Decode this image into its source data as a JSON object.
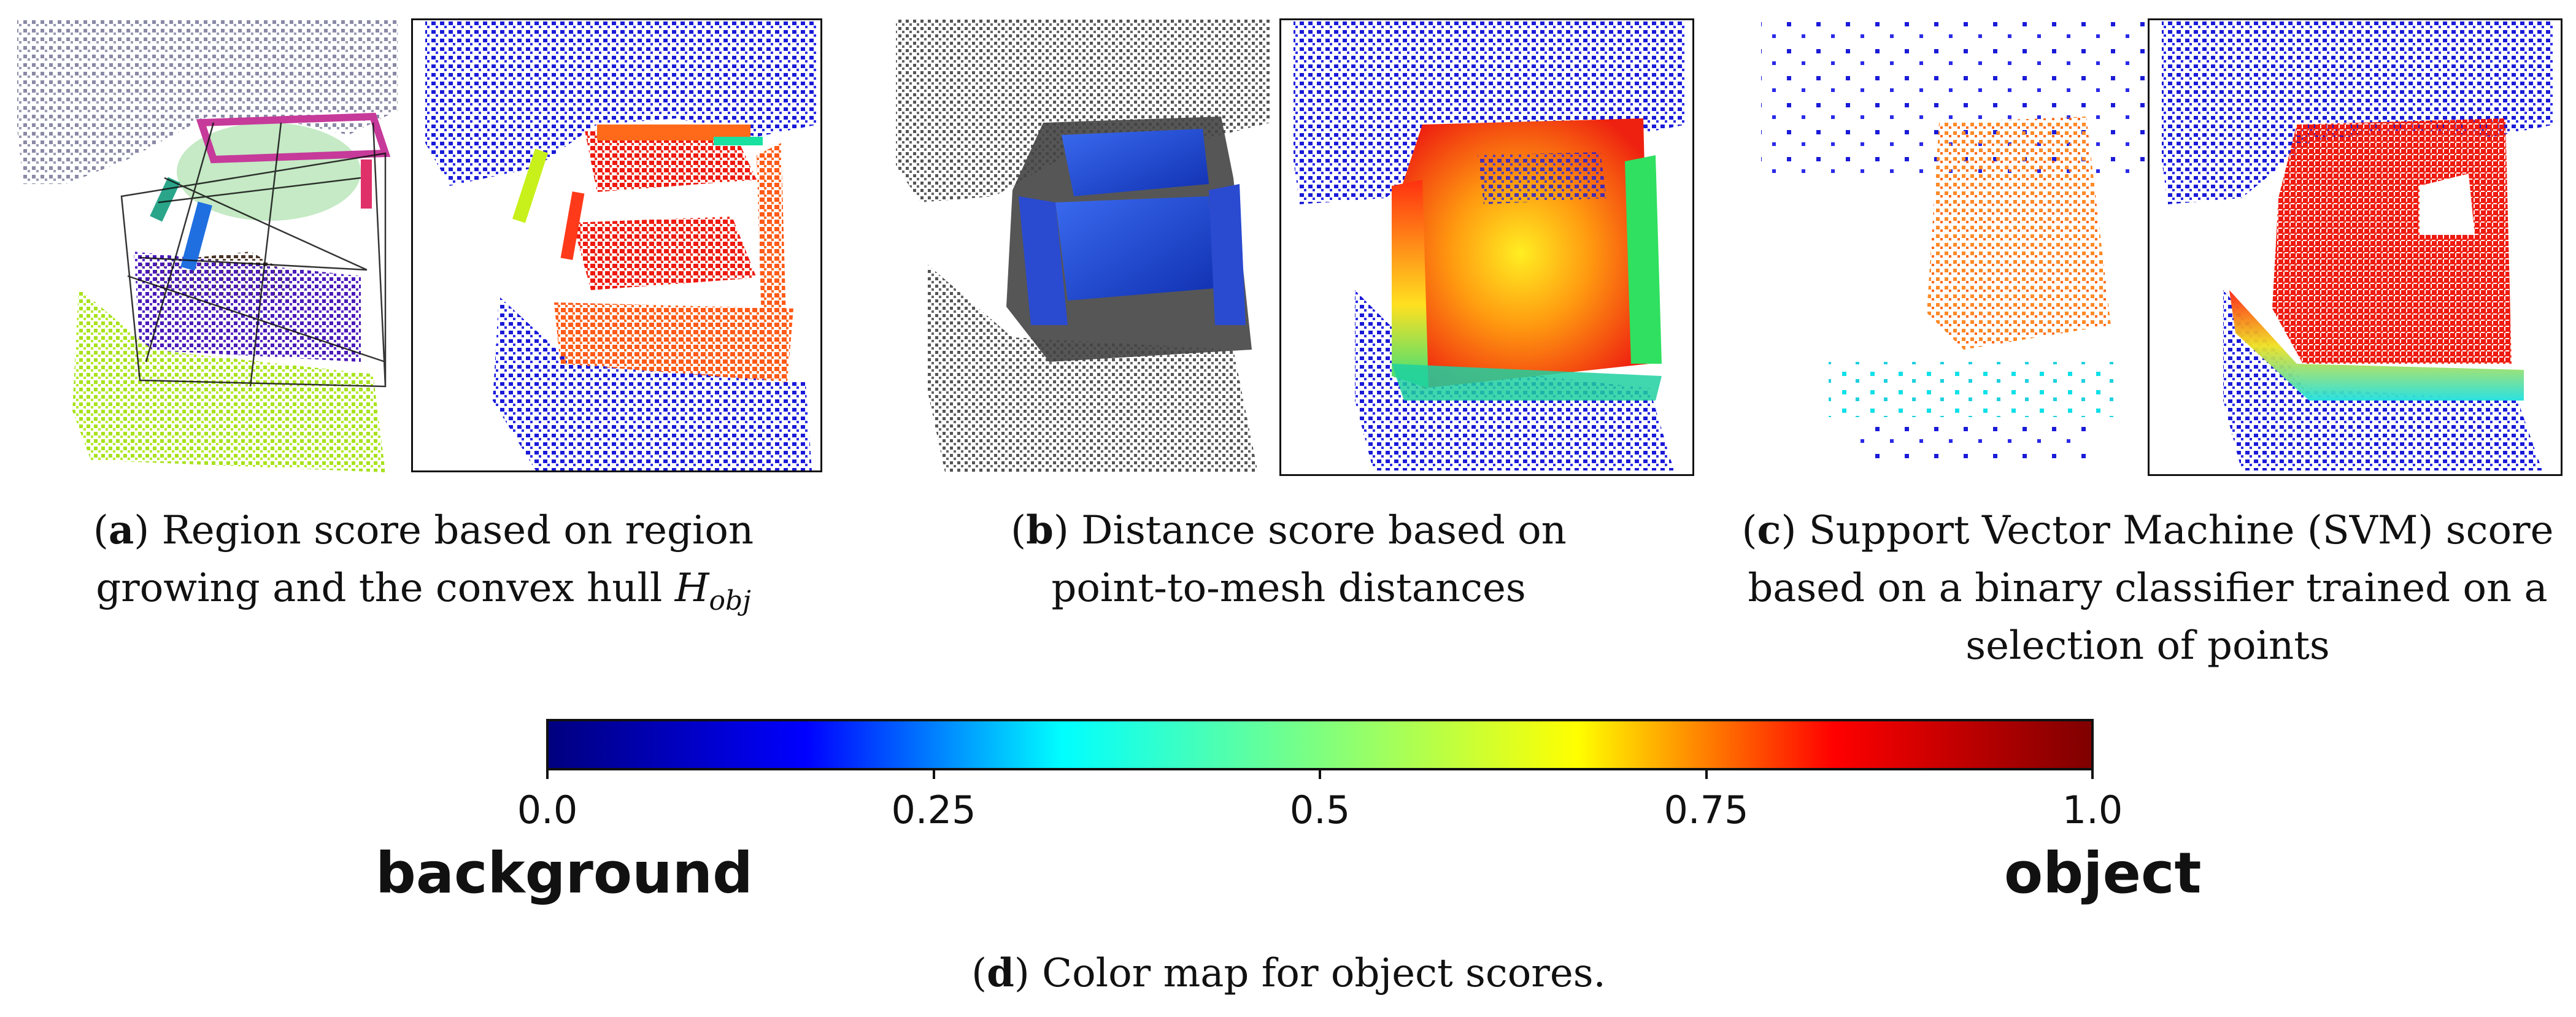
{
  "subfigures": [
    {
      "letter": "a",
      "caption_lines": [
        "Region score based on region",
        "growing and the convex hull "
      ],
      "hull_symbol": "H",
      "hull_subscript": "obj"
    },
    {
      "letter": "b",
      "caption_lines": [
        "Distance score based on",
        "point-to-mesh distances"
      ]
    },
    {
      "letter": "c",
      "caption_lines": [
        "Support Vector Machine (SVM) score",
        "based on a binary classifier trained on a",
        "selection of points"
      ]
    },
    {
      "letter": "d",
      "caption_lines": [
        "Color map for object scores."
      ]
    }
  ],
  "colormap": {
    "name": "jet",
    "stops": [
      "#00007f",
      "#0000ff",
      "#00ffff",
      "#7fff7f",
      "#ffff00",
      "#ff0000",
      "#7f0000"
    ],
    "ticks": [
      {
        "value": 0.0,
        "label": "0.0"
      },
      {
        "value": 0.25,
        "label": "0.25"
      },
      {
        "value": 0.5,
        "label": "0.5"
      },
      {
        "value": 0.75,
        "label": "0.75"
      },
      {
        "value": 1.0,
        "label": "1.0"
      }
    ],
    "low_label": "background",
    "high_label": "object"
  },
  "palette": {
    "background_points": "#2a2ad8",
    "wall_gray": "#8a8aa6",
    "mesh_gray": "#4a4a4a",
    "sofa_blue": "#2a5ae8",
    "score_red": "#ee2211",
    "score_orange": "#ff6a1a"
  }
}
